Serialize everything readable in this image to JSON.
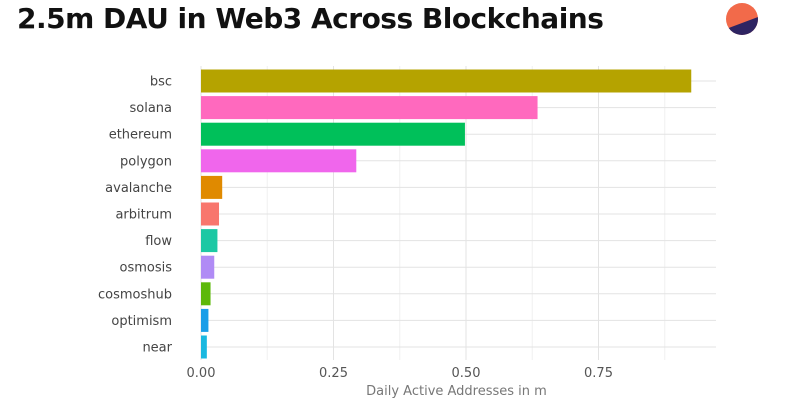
{
  "chart_data": {
    "type": "bar",
    "orientation": "horizontal",
    "title": "2.5m DAU in Web3 Across Blockchains",
    "xlabel": "Daily Active Addresses in m",
    "ylabel": "",
    "xlim": [
      0,
      0.97
    ],
    "xticks": [
      0,
      0.25,
      0.5,
      0.75
    ],
    "xtick_labels": [
      "0.00",
      "0.25",
      "0.50",
      "0.75"
    ],
    "grid": true,
    "categories": [
      "bsc",
      "solana",
      "ethereum",
      "polygon",
      "avalanche",
      "arbitrum",
      "flow",
      "osmosis",
      "cosmoshub",
      "optimism",
      "near"
    ],
    "values": [
      0.925,
      0.635,
      0.498,
      0.293,
      0.04,
      0.034,
      0.031,
      0.025,
      0.018,
      0.014,
      0.011
    ],
    "colors": [
      "#B5A300",
      "#FF69BE",
      "#00C05A",
      "#F066EC",
      "#E08A00",
      "#F8766D",
      "#1CC8A4",
      "#B08BF5",
      "#5CB80A",
      "#1A9EE8",
      "#1AB8E0"
    ]
  },
  "logo": {
    "icon": "logo-icon",
    "colors": [
      "#F26A4A",
      "#2E2462"
    ]
  }
}
